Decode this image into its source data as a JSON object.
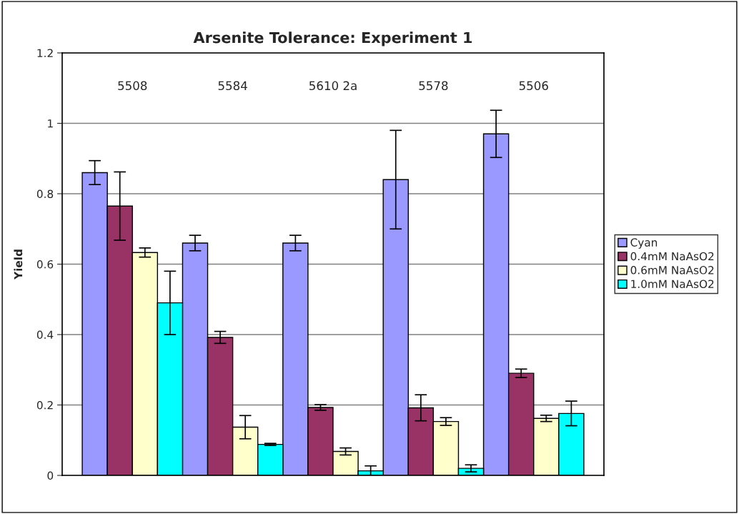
{
  "chart_data": {
    "type": "bar",
    "title": "Arsenite Tolerance: Experiment 1",
    "ylabel": "Yield",
    "categories": [
      "5508",
      "5584",
      "5610 2a",
      "5578",
      "5506"
    ],
    "series": [
      {
        "name": "Cyan",
        "color": "#9999ff",
        "values": [
          0.86,
          0.66,
          0.66,
          0.84,
          0.97
        ],
        "errors": [
          0.034,
          0.022,
          0.022,
          0.14,
          0.067
        ]
      },
      {
        "name": "0.4mM NaAsO2",
        "color": "#993366",
        "values": [
          0.765,
          0.392,
          0.193,
          0.192,
          0.29
        ],
        "errors": [
          0.097,
          0.017,
          0.008,
          0.037,
          0.012
        ]
      },
      {
        "name": "0.6mM NaAsO2",
        "color": "#ffffcc",
        "values": [
          0.633,
          0.137,
          0.068,
          0.153,
          0.162
        ],
        "errors": [
          0.013,
          0.033,
          0.01,
          0.011,
          0.009
        ]
      },
      {
        "name": "1.0mM NaAsO2",
        "color": "#00ffff",
        "values": [
          0.49,
          0.088,
          0.013,
          0.02,
          0.176
        ],
        "errors": [
          0.09,
          0.003,
          0.014,
          0.01,
          0.035
        ]
      }
    ],
    "ylim": [
      0,
      1.2
    ],
    "yticks": [
      0,
      0.2,
      0.4,
      0.6,
      0.8,
      1,
      1.2
    ],
    "grid": "y",
    "legend": "right"
  }
}
